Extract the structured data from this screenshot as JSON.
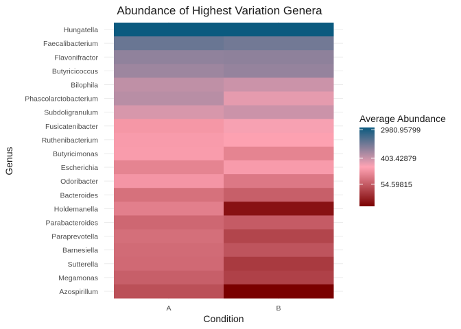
{
  "chart_data": {
    "type": "heatmap",
    "title": "Abundance of Highest Variation Genera",
    "xlabel": "Condition",
    "ylabel": "Genus",
    "x_categories": [
      "A",
      "B"
    ],
    "y_categories": [
      "Hungatella",
      "Faecalibacterium",
      "Flavonifractor",
      "Butyricicoccus",
      "Bilophila",
      "Phascolarctobacterium",
      "Subdoligranulum",
      "Fusicatenibacter",
      "Ruthenibacterium",
      "Butyricimonas",
      "Escherichia",
      "Odoribacter",
      "Bacteroides",
      "Holdemanella",
      "Parabacteroides",
      "Paraprevotella",
      "Barnesiella",
      "Sutterella",
      "Megamonas",
      "Azospirillum"
    ],
    "values": {
      "A": [
        2980.96,
        1380,
        1000,
        900,
        680,
        720,
        560,
        300,
        330,
        340,
        190,
        290,
        120,
        170,
        95,
        115,
        105,
        100,
        78,
        54.6
      ],
      "B": [
        2980.96,
        1280,
        1020,
        960,
        620,
        500,
        620,
        430,
        380,
        190,
        330,
        145,
        78,
        12,
        72,
        42,
        60,
        32,
        38,
        8
      ]
    },
    "color_scale": {
      "type": "log-gradient",
      "low": "#7a0000",
      "mid": "#ffa3b4",
      "high": "#0b5a7f"
    },
    "legend": {
      "title": "Average Abundance",
      "placement": "right",
      "breaks": [
        {
          "value": 2980.95799,
          "label": "2980.95799"
        },
        {
          "value": 403.42879,
          "label": "403.42879"
        },
        {
          "value": 54.59815,
          "label": "54.59815"
        }
      ]
    },
    "grid": true
  }
}
